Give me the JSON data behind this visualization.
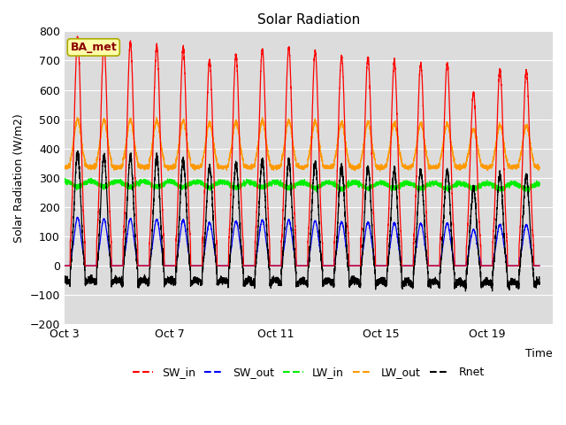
{
  "title": "Solar Radiation",
  "ylabel": "Solar Radiation (W/m2)",
  "xlabel": "Time",
  "ylim": [
    -200,
    800
  ],
  "yticks": [
    -200,
    -100,
    0,
    100,
    200,
    300,
    400,
    500,
    600,
    700,
    800
  ],
  "xtick_labels": [
    "Oct 3",
    "Oct 7",
    "Oct 11",
    "Oct 15",
    "Oct 19"
  ],
  "xtick_positions": [
    0,
    4,
    8,
    12,
    16
  ],
  "xlim": [
    0,
    18.5
  ],
  "station_label": "BA_met",
  "bg_color": "#dcdcdc",
  "series_colors": {
    "SW_in": "#ff0000",
    "SW_out": "#0000ff",
    "LW_in": "#00ee00",
    "LW_out": "#ff9900",
    "Rnet": "#000000"
  },
  "n_days": 18,
  "sw_in_peaks": [
    780,
    760,
    760,
    750,
    740,
    700,
    720,
    740,
    745,
    730,
    715,
    710,
    695,
    690,
    690,
    590,
    670,
    665
  ],
  "lw_in_base": 290,
  "lw_out_base": 345,
  "rnet_night": -60
}
